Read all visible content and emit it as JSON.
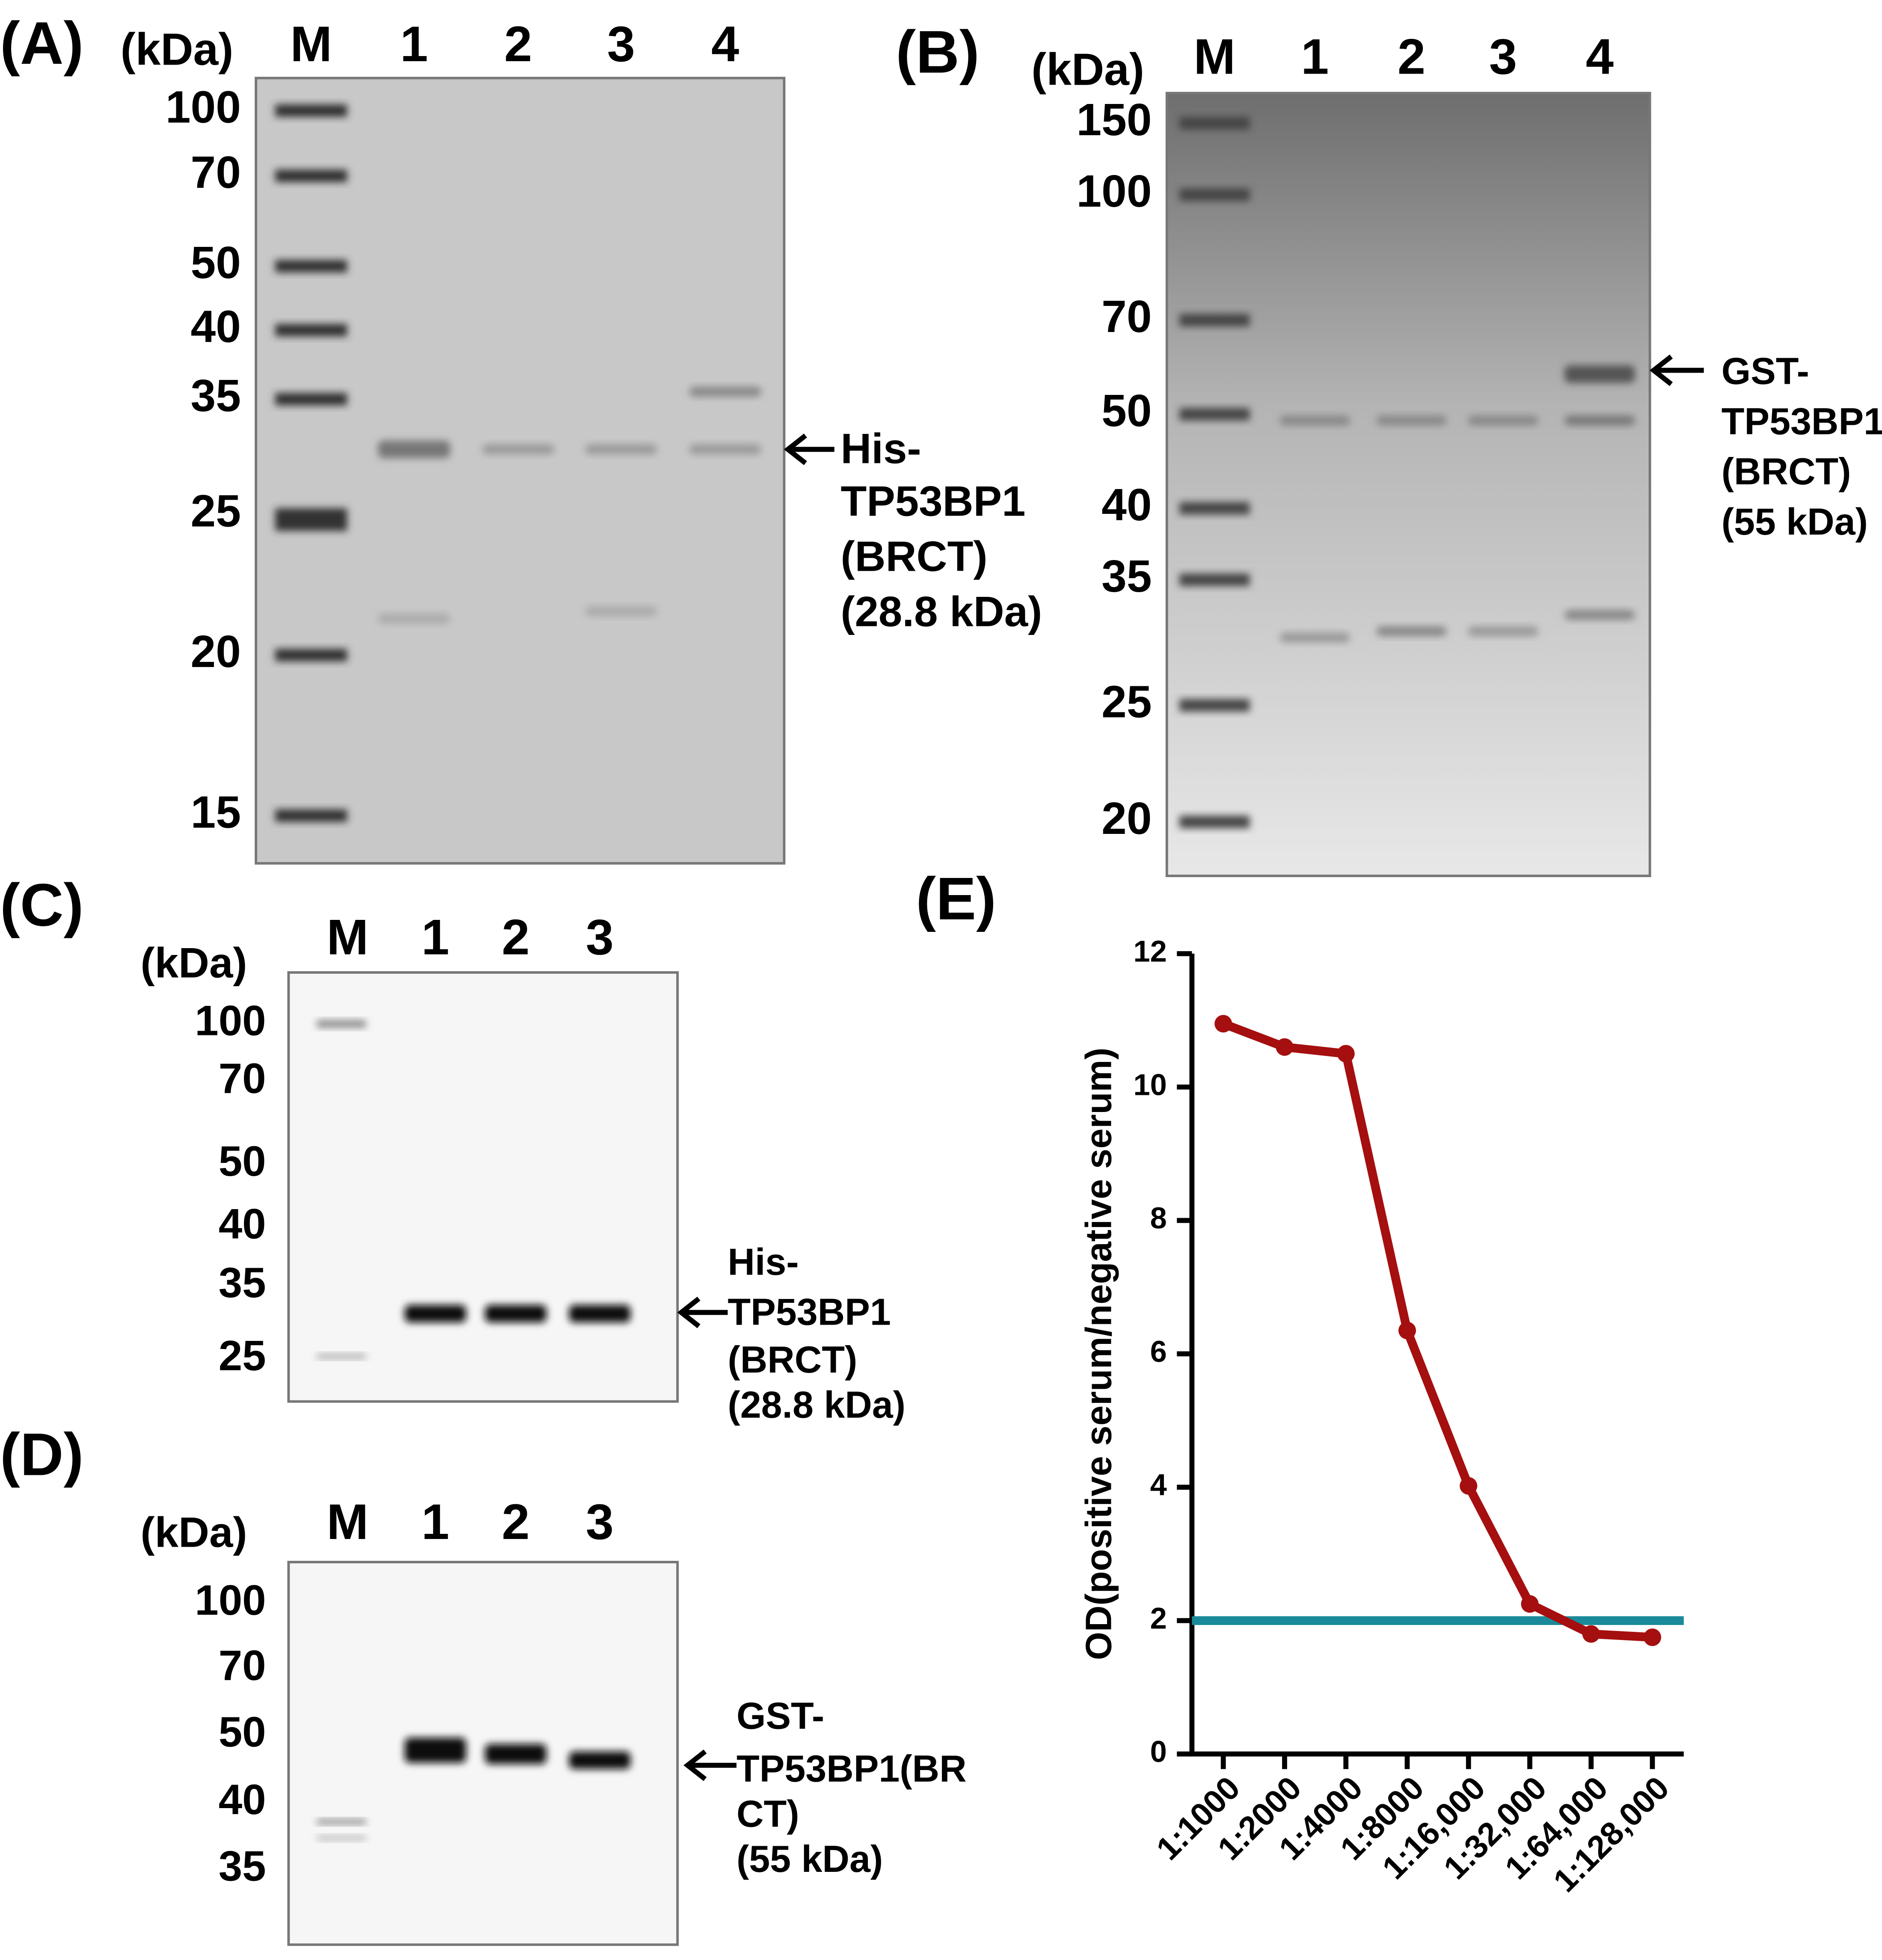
{
  "panels": [
    {
      "label": "(A)",
      "unit": "(kDa)",
      "lanes": [
        "M",
        "1",
        "2",
        "3",
        "4"
      ],
      "markers": [
        "100",
        "70",
        "50",
        "40",
        "35",
        "25",
        "20",
        "15"
      ],
      "annotation": [
        "His-",
        "TP53BP1",
        "(BRCT)",
        "(28.8 kDa)"
      ]
    },
    {
      "label": "(B)",
      "unit": "(kDa)",
      "lanes": [
        "M",
        "1",
        "2",
        "3",
        "4"
      ],
      "markers": [
        "150",
        "100",
        "70",
        "50",
        "40",
        "35",
        "25",
        "20"
      ],
      "annotation": [
        "GST-",
        "TP53BP1",
        "(BRCT)",
        "(55 kDa)"
      ]
    },
    {
      "label": "(C)",
      "unit": "(kDa)",
      "lanes": [
        "M",
        "1",
        "2",
        "3"
      ],
      "markers": [
        "100",
        "70",
        "50",
        "40",
        "35",
        "25"
      ],
      "annotation": [
        "His-",
        "TP53BP1",
        "(BRCT)",
        "(28.8 kDa)"
      ]
    },
    {
      "label": "(D)",
      "unit": "(kDa)",
      "lanes": [
        "M",
        "1",
        "2",
        "3"
      ],
      "markers": [
        "100",
        "70",
        "50",
        "40",
        "35"
      ],
      "annotation": [
        "GST-",
        "TP53BP1(BR",
        "CT)",
        "(55 kDa)"
      ]
    }
  ],
  "chart_data": {
    "type": "line",
    "panel_label": "(E)",
    "y_label": "OD(positive serum/negative serum)",
    "categories": [
      "1:1000",
      "1:2000",
      "1:4000",
      "1:8000",
      "1:16,000",
      "1:32,000",
      "1:64,000",
      "1:128,000"
    ],
    "series": [
      {
        "color": "#a50f0f",
        "values": [
          10.95,
          10.6,
          10.5,
          6.35,
          4.02,
          2.25,
          1.8,
          1.75
        ]
      }
    ],
    "reference_line": {
      "value": 2,
      "color": "#1a8a9a"
    },
    "ylim": [
      0,
      12
    ],
    "yticks": [
      0,
      2,
      4,
      6,
      8,
      10,
      12
    ]
  }
}
